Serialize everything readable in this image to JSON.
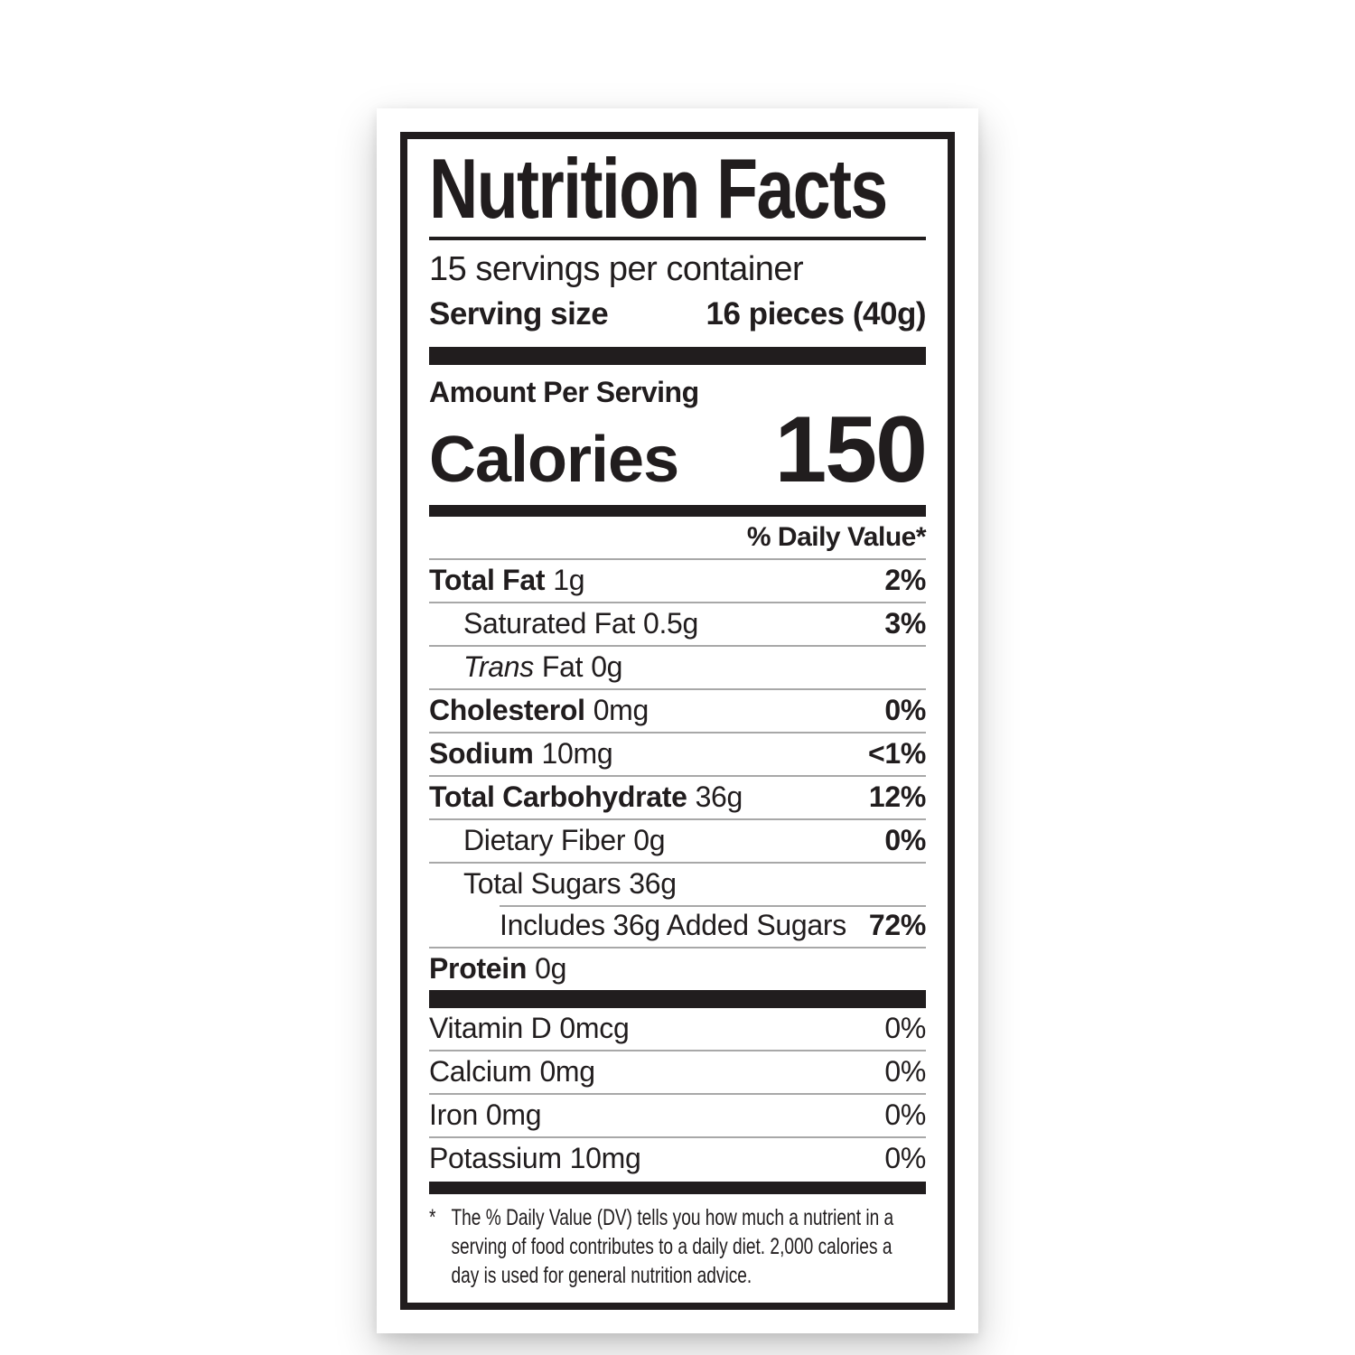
{
  "nutrition_label": {
    "title": "Nutrition Facts",
    "servings_per_container": "15 servings per container",
    "serving_size": {
      "label": "Serving size",
      "value": "16 pieces (40g)"
    },
    "amount_per_serving": "Amount Per Serving",
    "calories": {
      "label": "Calories",
      "value": "150"
    },
    "daily_value_header": "% Daily Value*",
    "nutrients": [
      {
        "name": "Total Fat",
        "amount": "1g",
        "dv": "2%"
      },
      {
        "name": "Saturated Fat",
        "amount": "0.5g",
        "dv": "3%"
      },
      {
        "name_italic": "Trans",
        "name": "Fat",
        "amount": "0g",
        "dv": ""
      },
      {
        "name": "Cholesterol",
        "amount": "0mg",
        "dv": "0%"
      },
      {
        "name": "Sodium",
        "amount": "10mg",
        "dv": "<1%"
      },
      {
        "name": "Total Carbohydrate",
        "amount": "36g",
        "dv": "12%"
      },
      {
        "name": "Dietary Fiber",
        "amount": "0g",
        "dv": "0%"
      },
      {
        "name": "Total Sugars",
        "amount": "36g",
        "dv": ""
      },
      {
        "name": "Includes 36g Added Sugars",
        "amount": "",
        "dv": "72%"
      },
      {
        "name": "Protein",
        "amount": "0g",
        "dv": ""
      }
    ],
    "vitamins": [
      {
        "name": "Vitamin D",
        "amount": "0mcg",
        "dv": "0%"
      },
      {
        "name": "Calcium",
        "amount": "0mg",
        "dv": "0%"
      },
      {
        "name": "Iron",
        "amount": "0mg",
        "dv": "0%"
      },
      {
        "name": "Potassium",
        "amount": "10mg",
        "dv": "0%"
      }
    ],
    "footnote": {
      "marker": "*",
      "lines": [
        "The % Daily Value (DV) tells you how much a nutrient in a",
        "serving of food contributes to a daily diet. 2,000 calories a",
        "day is used for general nutrition advice."
      ]
    },
    "colors": {
      "ink": "#211d1e",
      "hairline": "#a8a8a8"
    }
  }
}
